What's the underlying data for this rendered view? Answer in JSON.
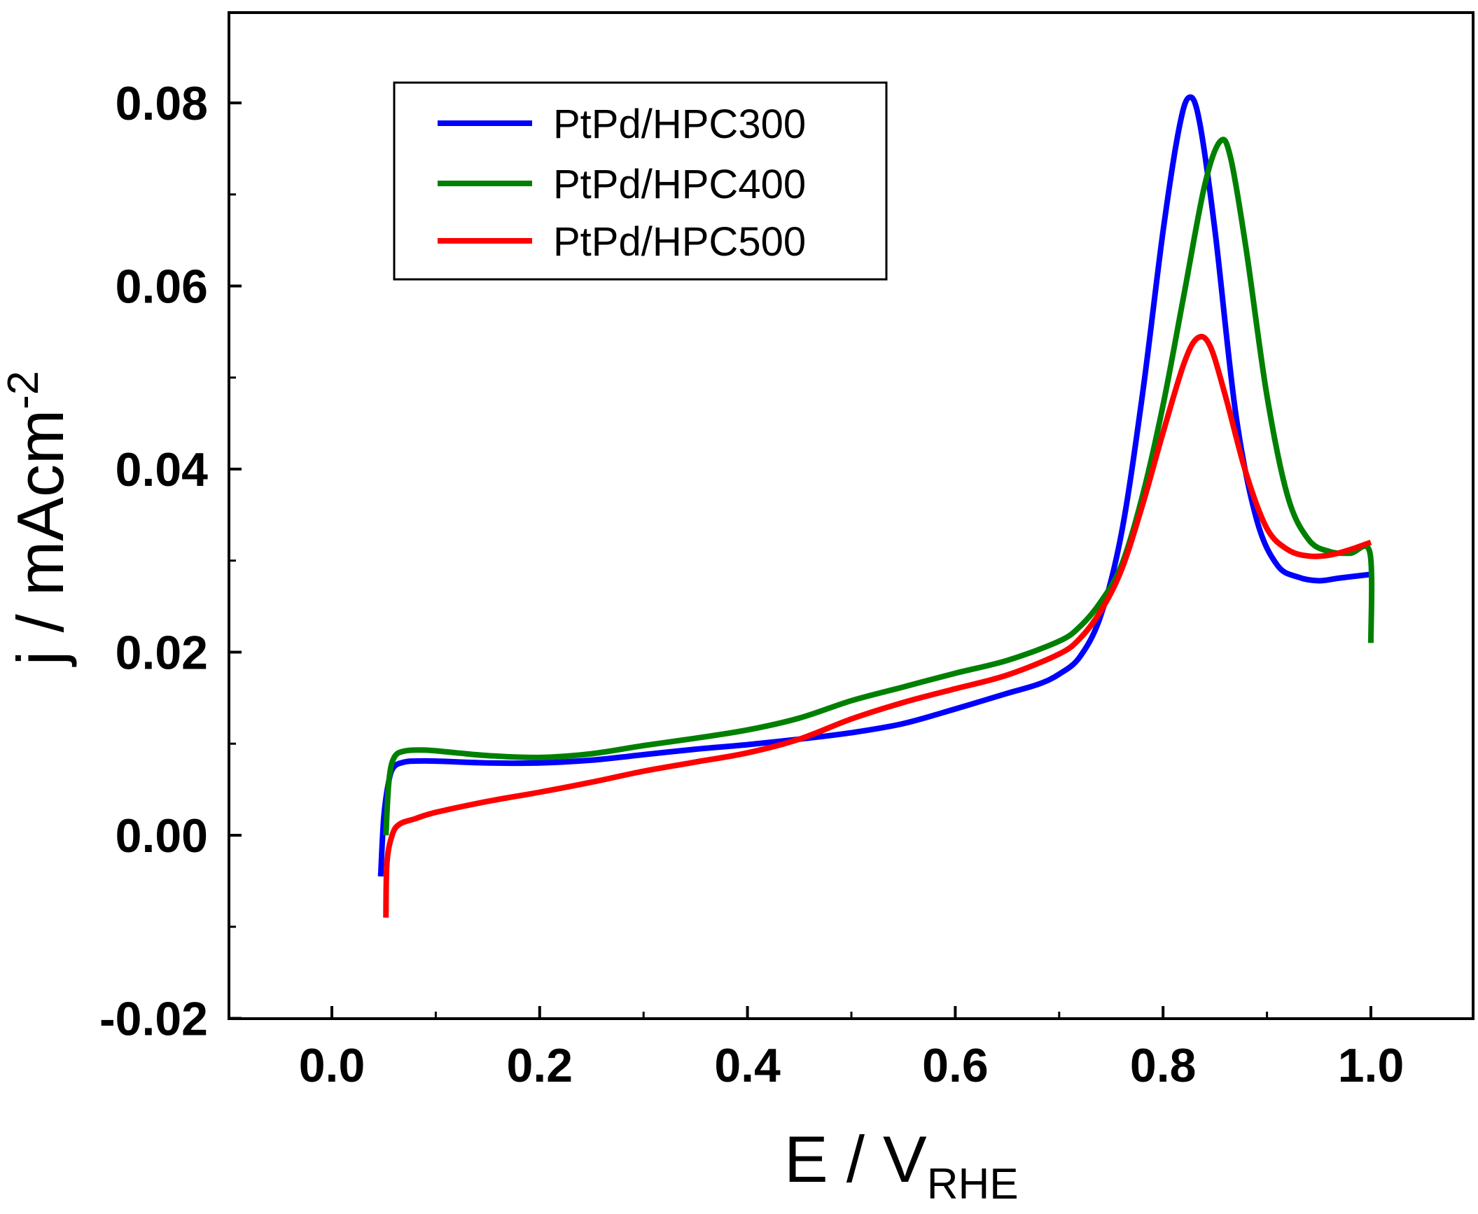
{
  "chart_data": {
    "type": "line",
    "title": "",
    "xlabel": "E / V",
    "xlabel_subscript": "RHE",
    "ylabel": "j / mAcm",
    "ylabel_superscript": "-2",
    "xlim": [
      -0.1,
      1.1
    ],
    "ylim": [
      -0.02,
      0.09
    ],
    "xticks": [
      0.0,
      0.2,
      0.4,
      0.6,
      0.8,
      1.0
    ],
    "xtick_labels": [
      "0.0",
      "0.2",
      "0.4",
      "0.6",
      "0.8",
      "1.0"
    ],
    "yticks": [
      -0.02,
      0.0,
      0.02,
      0.04,
      0.06,
      0.08
    ],
    "ytick_labels": [
      "-0.02",
      "0.00",
      "0.02",
      "0.04",
      "0.06",
      "0.08"
    ],
    "grid": false,
    "legend_position": "top-left",
    "series": [
      {
        "name": "PtPd/HPC300",
        "color": "#0000FF",
        "points": [
          [
            0.047,
            -0.0045
          ],
          [
            0.05,
            0.002
          ],
          [
            0.055,
            0.006
          ],
          [
            0.06,
            0.0075
          ],
          [
            0.07,
            0.008
          ],
          [
            0.08,
            0.0081
          ],
          [
            0.1,
            0.0081
          ],
          [
            0.15,
            0.0079
          ],
          [
            0.2,
            0.0079
          ],
          [
            0.25,
            0.0082
          ],
          [
            0.3,
            0.0088
          ],
          [
            0.35,
            0.0094
          ],
          [
            0.4,
            0.0099
          ],
          [
            0.45,
            0.0105
          ],
          [
            0.5,
            0.0112
          ],
          [
            0.55,
            0.0122
          ],
          [
            0.6,
            0.0138
          ],
          [
            0.65,
            0.0155
          ],
          [
            0.68,
            0.0165
          ],
          [
            0.7,
            0.0176
          ],
          [
            0.72,
            0.0195
          ],
          [
            0.74,
            0.024
          ],
          [
            0.76,
            0.033
          ],
          [
            0.78,
            0.048
          ],
          [
            0.8,
            0.066
          ],
          [
            0.815,
            0.077
          ],
          [
            0.825,
            0.0806
          ],
          [
            0.835,
            0.078
          ],
          [
            0.85,
            0.066
          ],
          [
            0.87,
            0.046
          ],
          [
            0.89,
            0.0345
          ],
          [
            0.91,
            0.0295
          ],
          [
            0.93,
            0.0282
          ],
          [
            0.95,
            0.0278
          ],
          [
            0.97,
            0.0281
          ],
          [
            1.0,
            0.0285
          ]
        ]
      },
      {
        "name": "PtPd/HPC400",
        "color": "#008000",
        "points": [
          [
            0.052,
            0.0
          ],
          [
            0.055,
            0.006
          ],
          [
            0.06,
            0.0085
          ],
          [
            0.07,
            0.0092
          ],
          [
            0.09,
            0.0093
          ],
          [
            0.12,
            0.009
          ],
          [
            0.15,
            0.0087
          ],
          [
            0.2,
            0.0085
          ],
          [
            0.25,
            0.0089
          ],
          [
            0.3,
            0.0098
          ],
          [
            0.35,
            0.0106
          ],
          [
            0.4,
            0.0115
          ],
          [
            0.45,
            0.0128
          ],
          [
            0.5,
            0.0147
          ],
          [
            0.55,
            0.0162
          ],
          [
            0.6,
            0.0177
          ],
          [
            0.65,
            0.0191
          ],
          [
            0.7,
            0.0212
          ],
          [
            0.72,
            0.0228
          ],
          [
            0.74,
            0.0255
          ],
          [
            0.76,
            0.0295
          ],
          [
            0.78,
            0.037
          ],
          [
            0.8,
            0.047
          ],
          [
            0.82,
            0.059
          ],
          [
            0.84,
            0.071
          ],
          [
            0.855,
            0.0758
          ],
          [
            0.865,
            0.074
          ],
          [
            0.88,
            0.064
          ],
          [
            0.9,
            0.048
          ],
          [
            0.92,
            0.037
          ],
          [
            0.94,
            0.0323
          ],
          [
            0.96,
            0.031
          ],
          [
            0.98,
            0.0308
          ],
          [
            0.999,
            0.0309
          ],
          [
            1.0,
            0.021
          ]
        ]
      },
      {
        "name": "PtPd/HPC500",
        "color": "#FF0000",
        "points": [
          [
            0.052,
            -0.009
          ],
          [
            0.053,
            -0.003
          ],
          [
            0.058,
            0.0
          ],
          [
            0.065,
            0.0012
          ],
          [
            0.08,
            0.0018
          ],
          [
            0.1,
            0.0025
          ],
          [
            0.15,
            0.0037
          ],
          [
            0.2,
            0.0047
          ],
          [
            0.25,
            0.0058
          ],
          [
            0.3,
            0.007
          ],
          [
            0.35,
            0.008
          ],
          [
            0.4,
            0.009
          ],
          [
            0.45,
            0.0105
          ],
          [
            0.5,
            0.0127
          ],
          [
            0.55,
            0.0145
          ],
          [
            0.6,
            0.016
          ],
          [
            0.65,
            0.0175
          ],
          [
            0.7,
            0.0198
          ],
          [
            0.72,
            0.0215
          ],
          [
            0.74,
            0.0245
          ],
          [
            0.76,
            0.029
          ],
          [
            0.78,
            0.036
          ],
          [
            0.8,
            0.044
          ],
          [
            0.82,
            0.0515
          ],
          [
            0.833,
            0.0543
          ],
          [
            0.845,
            0.0535
          ],
          [
            0.86,
            0.048
          ],
          [
            0.88,
            0.0395
          ],
          [
            0.9,
            0.0335
          ],
          [
            0.92,
            0.0312
          ],
          [
            0.94,
            0.0305
          ],
          [
            0.96,
            0.0306
          ],
          [
            0.98,
            0.0312
          ],
          [
            1.0,
            0.032
          ]
        ]
      }
    ]
  }
}
